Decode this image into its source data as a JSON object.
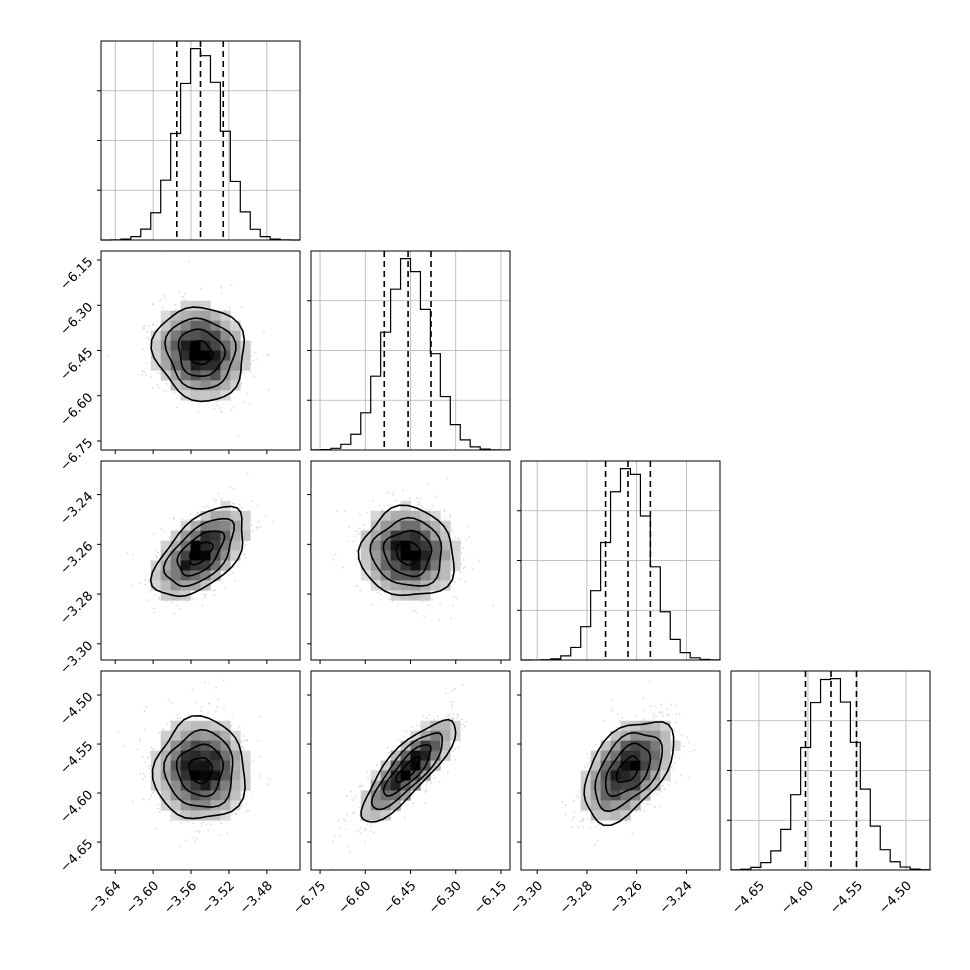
{
  "chart_data": {
    "type": "corner",
    "title": "",
    "n_params": 4,
    "params": [
      {
        "index": 0,
        "range": [
          -3.655,
          -3.445
        ],
        "median": -3.55,
        "q16": -3.575,
        "q84": -3.526,
        "std": 0.024,
        "ticks": [
          -3.64,
          -3.6,
          -3.56,
          -3.52,
          -3.48
        ],
        "tick_labels": [
          "−3.64",
          "−3.60",
          "−3.56",
          "−3.52",
          "−3.48"
        ]
      },
      {
        "index": 1,
        "range": [
          -6.78,
          -6.12
        ],
        "median": -6.458,
        "q16": -6.537,
        "q84": -6.382,
        "std": 0.078,
        "ticks": [
          -6.75,
          -6.6,
          -6.45,
          -6.3,
          -6.15
        ],
        "tick_labels": [
          "−6.75",
          "−6.60",
          "−6.45",
          "−6.30",
          "−6.15"
        ]
      },
      {
        "index": 2,
        "range": [
          -3.3065,
          -3.2265
        ],
        "median": -3.2635,
        "q16": -3.2725,
        "q84": -3.2545,
        "std": 0.009,
        "ticks": [
          -3.3,
          -3.28,
          -3.26,
          -3.24
        ],
        "tick_labels": [
          "−3.30",
          "−3.28",
          "−3.26",
          "−3.24"
        ]
      },
      {
        "index": 3,
        "range": [
          -4.6785,
          -4.4755
        ],
        "median": -4.5765,
        "q16": -4.6025,
        "q84": -4.5505,
        "std": 0.026,
        "ticks": [
          -4.65,
          -4.6,
          -4.55,
          -4.5
        ],
        "tick_labels": [
          "−4.65",
          "−4.60",
          "−4.55",
          "−4.50"
        ]
      }
    ],
    "correlations": [
      {
        "pair": [
          0,
          1
        ],
        "rho": -0.08
      },
      {
        "pair": [
          0,
          2
        ],
        "rho": 0.55
      },
      {
        "pair": [
          1,
          2
        ],
        "rho": -0.05
      },
      {
        "pair": [
          0,
          3
        ],
        "rho": 0.0
      },
      {
        "pair": [
          1,
          3
        ],
        "rho": 0.82
      },
      {
        "pair": [
          2,
          3
        ],
        "rho": 0.48
      }
    ],
    "histogram_bins": 20,
    "contour_levels_sigma": [
      0.5,
      1.0,
      1.5,
      2.0
    ],
    "quantiles_shown": [
      0.16,
      0.5,
      0.84
    ],
    "grid": true,
    "legend": "none"
  }
}
